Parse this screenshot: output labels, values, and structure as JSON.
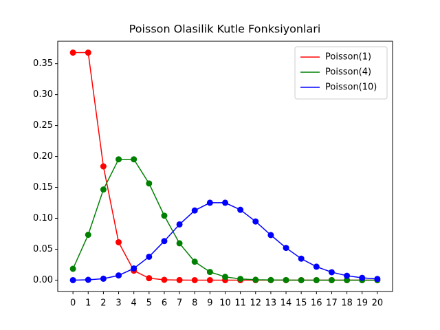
{
  "chart_data": {
    "type": "line",
    "title": "Poisson Olasilik Kutle Fonksiyonlari",
    "x": [
      0,
      1,
      2,
      3,
      4,
      5,
      6,
      7,
      8,
      9,
      10,
      11,
      12,
      13,
      14,
      15,
      16,
      17,
      18,
      19,
      20
    ],
    "series": [
      {
        "name": "Poisson(1)",
        "color": "#ff0000",
        "values": [
          0.3679,
          0.3679,
          0.1839,
          0.0613,
          0.0153,
          0.0031,
          0.0005,
          0.0001,
          0,
          0,
          0,
          0,
          0,
          0,
          0,
          0,
          0,
          0,
          0,
          0,
          0
        ]
      },
      {
        "name": "Poisson(4)",
        "color": "#008000",
        "values": [
          0.0183,
          0.0733,
          0.1465,
          0.1954,
          0.1954,
          0.1563,
          0.1042,
          0.0595,
          0.0298,
          0.0132,
          0.0053,
          0.0019,
          0.0006,
          0.0002,
          0.0001,
          0,
          0,
          0,
          0,
          0,
          0
        ]
      },
      {
        "name": "Poisson(10)",
        "color": "#0000ff",
        "values": [
          0,
          0.0005,
          0.0023,
          0.0076,
          0.0189,
          0.0378,
          0.0631,
          0.0901,
          0.1126,
          0.1251,
          0.1251,
          0.1137,
          0.0948,
          0.0729,
          0.0521,
          0.0347,
          0.0217,
          0.0128,
          0.0071,
          0.0037,
          0.0019
        ]
      }
    ],
    "xlim": [
      -1,
      21
    ],
    "xticks": [
      0,
      1,
      2,
      3,
      4,
      5,
      6,
      7,
      8,
      9,
      10,
      11,
      12,
      13,
      14,
      15,
      16,
      17,
      18,
      19,
      20
    ],
    "ylim": [
      -0.0184,
      0.3863
    ],
    "yticks": [
      {
        "value": 0,
        "label": "0.00"
      },
      {
        "value": 0.05,
        "label": "0.05"
      },
      {
        "value": 0.1,
        "label": "0.10"
      },
      {
        "value": 0.15,
        "label": "0.15"
      },
      {
        "value": 0.2,
        "label": "0.20"
      },
      {
        "value": 0.25,
        "label": "0.25"
      },
      {
        "value": 0.3,
        "label": "0.30"
      },
      {
        "value": 0.35,
        "label": "0.35"
      }
    ],
    "legend": "upper right",
    "markers": true
  }
}
